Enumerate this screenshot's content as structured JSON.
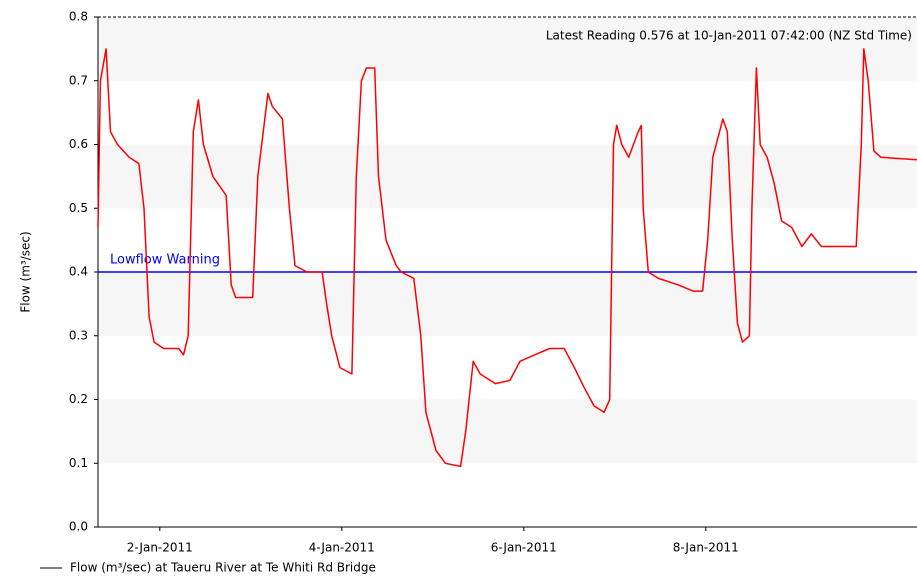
{
  "chart_data": {
    "type": "line",
    "annotation": "Latest Reading 0.576 at 10-Jan-2011 07:42:00 (NZ Std Time)",
    "y_label": "Flow (m³/sec)",
    "xlim": [
      "2011-01-01T07:42",
      "2011-01-10T07:42"
    ],
    "xticks": [
      {
        "value": "2011-01-02T00:00",
        "label": "2-Jan-2011"
      },
      {
        "value": "2011-01-04T00:00",
        "label": "4-Jan-2011"
      },
      {
        "value": "2011-01-06T00:00",
        "label": "6-Jan-2011"
      },
      {
        "value": "2011-01-08T00:00",
        "label": "8-Jan-2011"
      }
    ],
    "ylim": [
      0,
      0.8
    ],
    "yticks": [
      {
        "value": 0,
        "label": "0.0"
      },
      0.1,
      0.2,
      0.3,
      0.4,
      0.5,
      0.6,
      0.7,
      0.8
    ],
    "banded": true,
    "legend_line_color": "#000000",
    "threshold": {
      "name": "Lowflow Warning",
      "value": 0.4,
      "color": "#0000ff"
    },
    "x": [
      "2011-01-01T07:42",
      "2011-01-01T08:20",
      "2011-01-01T09:50",
      "2011-01-01T11:00",
      "2011-01-01T12:50",
      "2011-01-01T15:55",
      "2011-01-01T18:30",
      "2011-01-01T19:50",
      "2011-01-01T21:10",
      "2011-01-01T22:30",
      "2011-01-02T01:00",
      "2011-01-02T05:00",
      "2011-01-02T06:15",
      "2011-01-02T07:30",
      "2011-01-02T08:50",
      "2011-01-02T10:10",
      "2011-01-02T11:30",
      "2011-01-02T14:00",
      "2011-01-02T17:30",
      "2011-01-02T18:50",
      "2011-01-02T20:00",
      "2011-01-03T00:30",
      "2011-01-03T01:50",
      "2011-01-03T04:30",
      "2011-01-03T05:40",
      "2011-01-03T08:20",
      "2011-01-03T10:10",
      "2011-01-03T11:40",
      "2011-01-03T14:50",
      "2011-01-03T18:50",
      "2011-01-03T20:00",
      "2011-01-03T21:20",
      "2011-01-03T23:30",
      "2011-01-04T02:40",
      "2011-01-04T03:50",
      "2011-01-04T05:10",
      "2011-01-04T06:30",
      "2011-01-04T08:40",
      "2011-01-04T09:40",
      "2011-01-04T11:40",
      "2011-01-04T14:20",
      "2011-01-04T15:40",
      "2011-01-04T19:00",
      "2011-01-04T20:50",
      "2011-01-04T22:10",
      "2011-01-05T00:50",
      "2011-01-05T03:20",
      "2011-01-05T07:20",
      "2011-01-05T08:40",
      "2011-01-05T10:40",
      "2011-01-05T12:30",
      "2011-01-05T16:30",
      "2011-01-05T20:20",
      "2011-01-05T23:00",
      "2011-01-06T02:50",
      "2011-01-06T06:50",
      "2011-01-06T10:40",
      "2011-01-06T13:20",
      "2011-01-06T15:50",
      "2011-01-06T18:30",
      "2011-01-06T21:10",
      "2011-01-06T22:40",
      "2011-01-06T23:40",
      "2011-01-07T00:30",
      "2011-01-07T01:50",
      "2011-01-07T03:40",
      "2011-01-07T06:10",
      "2011-01-07T07:00",
      "2011-01-07T07:30",
      "2011-01-07T08:50",
      "2011-01-07T11:30",
      "2011-01-07T16:40",
      "2011-01-07T20:40",
      "2011-01-07T23:10",
      "2011-01-08T00:30",
      "2011-01-08T01:50",
      "2011-01-08T04:30",
      "2011-01-08T05:40",
      "2011-01-08T07:00",
      "2011-01-08T08:20",
      "2011-01-08T09:40",
      "2011-01-08T11:30",
      "2011-01-08T12:10",
      "2011-01-08T13:20",
      "2011-01-08T14:20",
      "2011-01-08T16:10",
      "2011-01-08T18:00",
      "2011-01-08T20:00",
      "2011-01-08T22:40",
      "2011-01-09T01:20",
      "2011-01-09T03:50",
      "2011-01-09T06:30",
      "2011-01-09T11:40",
      "2011-01-09T15:40",
      "2011-01-09T17:00",
      "2011-01-09T17:40",
      "2011-01-09T18:50",
      "2011-01-09T20:20",
      "2011-01-09T22:10",
      "2011-01-10T07:42"
    ],
    "series": [
      {
        "name": "Flow (m³/sec) at Taueru River at Te Whiti Rd Bridge",
        "color": "#ff0000",
        "values": [
          0.47,
          0.7,
          0.75,
          0.62,
          0.6,
          0.58,
          0.57,
          0.5,
          0.33,
          0.29,
          0.28,
          0.28,
          0.27,
          0.3,
          0.62,
          0.67,
          0.6,
          0.55,
          0.52,
          0.38,
          0.36,
          0.36,
          0.55,
          0.68,
          0.66,
          0.64,
          0.5,
          0.41,
          0.4,
          0.4,
          0.35,
          0.3,
          0.25,
          0.24,
          0.55,
          0.7,
          0.72,
          0.72,
          0.55,
          0.45,
          0.41,
          0.4,
          0.39,
          0.3,
          0.18,
          0.12,
          0.1,
          0.095,
          0.15,
          0.26,
          0.24,
          0.225,
          0.23,
          0.26,
          0.27,
          0.28,
          0.28,
          0.25,
          0.22,
          0.19,
          0.18,
          0.2,
          0.6,
          0.63,
          0.6,
          0.58,
          0.62,
          0.63,
          0.5,
          0.4,
          0.39,
          0.38,
          0.37,
          0.37,
          0.45,
          0.58,
          0.64,
          0.62,
          0.45,
          0.32,
          0.29,
          0.3,
          0.5,
          0.72,
          0.6,
          0.58,
          0.54,
          0.48,
          0.47,
          0.44,
          0.46,
          0.44,
          0.44,
          0.44,
          0.6,
          0.75,
          0.7,
          0.59,
          0.58,
          0.576
        ]
      }
    ]
  }
}
